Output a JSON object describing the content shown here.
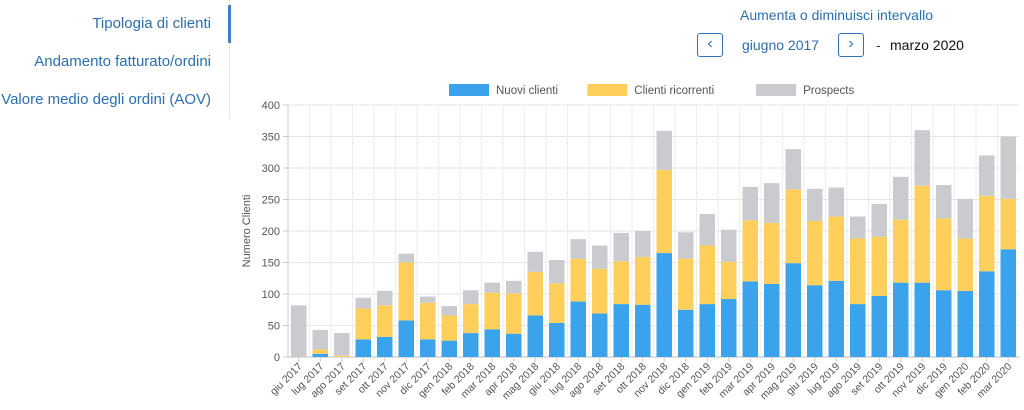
{
  "sidebar": {
    "items": [
      {
        "label": "Tipologia di clienti",
        "active": true
      },
      {
        "label": "Andamento fatturato/ordini",
        "active": false
      },
      {
        "label": "Valore medio degli ordini (AOV)",
        "active": false
      }
    ]
  },
  "range": {
    "title": "Aumenta o diminuisci intervallo",
    "start": "giugno 2017",
    "separator": "-",
    "end": "marzo 2020",
    "prev_icon": "chevron-left-icon",
    "next_icon": "chevron-right-icon"
  },
  "chart_data": {
    "type": "bar",
    "stacked": true,
    "ylabel": "Numero Clienti",
    "xlabel": "",
    "ylim": [
      0,
      400
    ],
    "yticks": [
      0,
      50,
      100,
      150,
      200,
      250,
      300,
      350,
      400
    ],
    "grid": true,
    "legend_position": "top",
    "categories": [
      "giu 2017",
      "lug 2017",
      "ago 2017",
      "set 2017",
      "ott 2017",
      "nov 2017",
      "dic 2017",
      "gen 2018",
      "feb 2018",
      "mar 2018",
      "apr 2018",
      "mag 2018",
      "giu 2018",
      "lug 2018",
      "ago 2018",
      "set 2018",
      "ott 2018",
      "nov 2018",
      "dic 2018",
      "gen 2019",
      "feb 2019",
      "mar 2019",
      "apr 2019",
      "mag 2019",
      "giu 2019",
      "lug 2019",
      "ago 2019",
      "set 2019",
      "ott 2019",
      "nov 2019",
      "dic 2019",
      "gen 2020",
      "feb 2020",
      "mar 2020"
    ],
    "series": [
      {
        "name": "Nuovi clienti",
        "color": "#3ba3ec",
        "values": [
          0,
          5,
          0,
          28,
          32,
          58,
          28,
          26,
          38,
          44,
          37,
          66,
          54,
          88,
          69,
          84,
          83,
          165,
          75,
          84,
          92,
          120,
          116,
          149,
          114,
          121,
          84,
          97,
          118,
          118,
          106,
          105,
          136,
          171
        ]
      },
      {
        "name": "Clienti ricorrenti",
        "color": "#ffcf5c",
        "values": [
          0,
          7,
          2,
          49,
          50,
          92,
          58,
          40,
          46,
          58,
          64,
          69,
          63,
          68,
          71,
          68,
          76,
          132,
          81,
          93,
          59,
          97,
          97,
          117,
          102,
          102,
          104,
          94,
          100,
          154,
          114,
          83,
          120,
          80
        ]
      },
      {
        "name": "Prospects",
        "color": "#c9cbcf",
        "values": [
          82,
          31,
          36,
          17,
          23,
          14,
          10,
          15,
          22,
          16,
          20,
          32,
          37,
          31,
          37,
          45,
          41,
          62,
          42,
          50,
          51,
          53,
          63,
          64,
          51,
          46,
          35,
          52,
          68,
          88,
          53,
          63,
          64,
          99
        ]
      }
    ]
  }
}
